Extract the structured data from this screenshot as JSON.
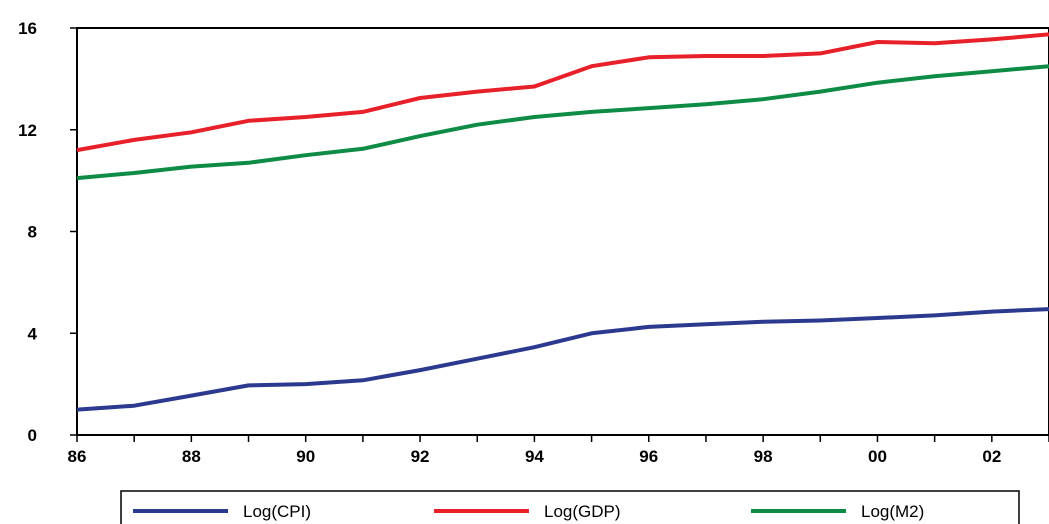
{
  "chart_data": {
    "type": "line",
    "title": "",
    "xlabel": "",
    "ylabel": "",
    "x": [
      1986,
      1987,
      1988,
      1989,
      1990,
      1991,
      1992,
      1993,
      1994,
      1995,
      1996,
      1997,
      1998,
      1999,
      2000,
      2001,
      2002,
      2003
    ],
    "xlim": [
      1986,
      2003
    ],
    "ylim": [
      0,
      16
    ],
    "x_ticks": [
      "86",
      "88",
      "90",
      "92",
      "94",
      "96",
      "98",
      "00",
      "02"
    ],
    "y_ticks": [
      "0",
      "4",
      "8",
      "12",
      "16"
    ],
    "legend_position": "bottom",
    "grid": false,
    "series": [
      {
        "name": "Log(CPI)",
        "color": "#2b3a8f",
        "values": [
          1.0,
          1.15,
          1.55,
          1.95,
          2.0,
          2.15,
          2.55,
          3.0,
          3.45,
          4.0,
          4.25,
          4.35,
          4.45,
          4.5,
          4.6,
          4.7,
          4.85,
          4.95
        ]
      },
      {
        "name": "Log(GDP)",
        "color": "#e8202a",
        "values": [
          11.2,
          11.6,
          11.9,
          12.35,
          12.5,
          12.7,
          13.25,
          13.5,
          13.7,
          14.5,
          14.85,
          14.9,
          14.9,
          15.0,
          15.45,
          15.4,
          15.55,
          15.75
        ]
      },
      {
        "name": "Log(M2)",
        "color": "#0e8c45",
        "values": [
          10.1,
          10.3,
          10.55,
          10.7,
          11.0,
          11.25,
          11.75,
          12.2,
          12.5,
          12.7,
          12.85,
          13.0,
          13.2,
          13.5,
          13.85,
          14.1,
          14.3,
          14.5
        ]
      }
    ]
  }
}
